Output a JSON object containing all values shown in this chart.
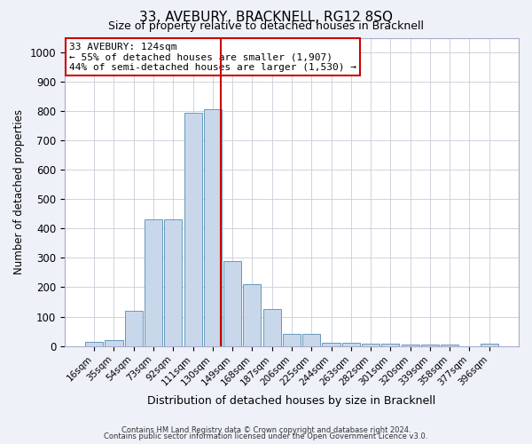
{
  "title": "33, AVEBURY, BRACKNELL, RG12 8SQ",
  "subtitle": "Size of property relative to detached houses in Bracknell",
  "xlabel": "Distribution of detached houses by size in Bracknell",
  "ylabel": "Number of detached properties",
  "categories": [
    "16sqm",
    "35sqm",
    "54sqm",
    "73sqm",
    "92sqm",
    "111sqm",
    "130sqm",
    "149sqm",
    "168sqm",
    "187sqm",
    "206sqm",
    "225sqm",
    "244sqm",
    "263sqm",
    "282sqm",
    "301sqm",
    "320sqm",
    "339sqm",
    "358sqm",
    "377sqm",
    "396sqm"
  ],
  "values": [
    15,
    20,
    120,
    430,
    430,
    795,
    805,
    290,
    210,
    125,
    40,
    40,
    12,
    10,
    8,
    8,
    5,
    5,
    5,
    0,
    8
  ],
  "bar_color": "#c8d8ea",
  "bar_edge_color": "#6699bb",
  "vline_color": "#cc0000",
  "vline_pos": 6.42,
  "annotation_text": "33 AVEBURY: 124sqm\n← 55% of detached houses are smaller (1,907)\n44% of semi-detached houses are larger (1,530) →",
  "annotation_box_facecolor": "#ffffff",
  "annotation_box_edgecolor": "#cc0000",
  "ylim": [
    0,
    1050
  ],
  "yticks": [
    0,
    100,
    200,
    300,
    400,
    500,
    600,
    700,
    800,
    900,
    1000
  ],
  "footer_line1": "Contains HM Land Registry data © Crown copyright and database right 2024.",
  "footer_line2": "Contains public sector information licensed under the Open Government Licence v3.0.",
  "fig_bg": "#eef2f8",
  "plot_bg": "#ffffff",
  "grid_color": "#c8ccd8"
}
